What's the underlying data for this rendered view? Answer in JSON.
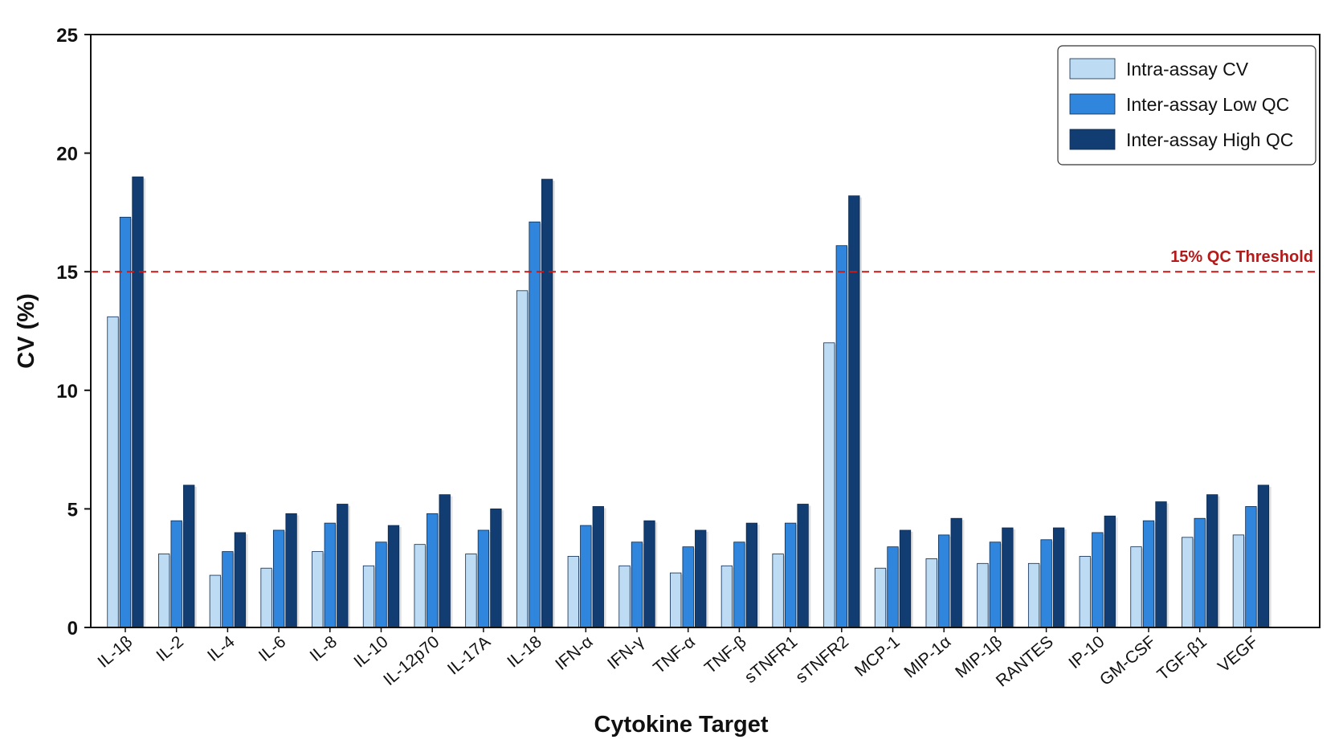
{
  "chart_data": {
    "type": "bar",
    "xlabel": "Cytokine Target",
    "ylabel": "CV (%)",
    "ylim": [
      0,
      25
    ],
    "yticks": [
      0,
      5,
      10,
      15,
      20,
      25
    ],
    "categories": [
      "IL-1β",
      "IL-2",
      "IL-4",
      "IL-6",
      "IL-8",
      "IL-10",
      "IL-12p70",
      "IL-17A",
      "IL-18",
      "IFN-α",
      "IFN-γ",
      "TNF-α",
      "TNF-β",
      "sTNFR1",
      "sTNFR2",
      "MCP-1",
      "MIP-1α",
      "MIP-1β",
      "RANTES",
      "IP-10",
      "GM-CSF",
      "TGF-β1",
      "VEGF"
    ],
    "series": [
      {
        "name": "Intra-assay CV",
        "color": "#bddcf4",
        "values": [
          13.1,
          3.1,
          2.2,
          2.5,
          3.2,
          2.6,
          3.5,
          3.1,
          14.2,
          3.0,
          2.6,
          2.3,
          2.6,
          3.1,
          12.0,
          2.5,
          2.9,
          2.7,
          2.7,
          3.0,
          3.4,
          3.8,
          3.9
        ]
      },
      {
        "name": "Inter-assay Low QC",
        "color": "#2f86dc",
        "values": [
          17.3,
          4.5,
          3.2,
          4.1,
          4.4,
          3.6,
          4.8,
          4.1,
          17.1,
          4.3,
          3.6,
          3.4,
          3.6,
          4.4,
          16.1,
          3.4,
          3.9,
          3.6,
          3.7,
          4.0,
          4.5,
          4.6,
          5.1
        ]
      },
      {
        "name": "Inter-assay High QC",
        "color": "#123d72",
        "values": [
          19.0,
          6.0,
          4.0,
          4.8,
          5.2,
          4.3,
          5.6,
          5.0,
          18.9,
          5.1,
          4.5,
          4.1,
          4.4,
          5.2,
          18.2,
          4.1,
          4.6,
          4.2,
          4.2,
          4.7,
          5.3,
          5.6,
          6.0
        ]
      }
    ],
    "threshold": {
      "value": 15,
      "label": "15% QC Threshold",
      "color": "#c41a1a"
    },
    "legend_position": "top-right",
    "grid": false
  }
}
